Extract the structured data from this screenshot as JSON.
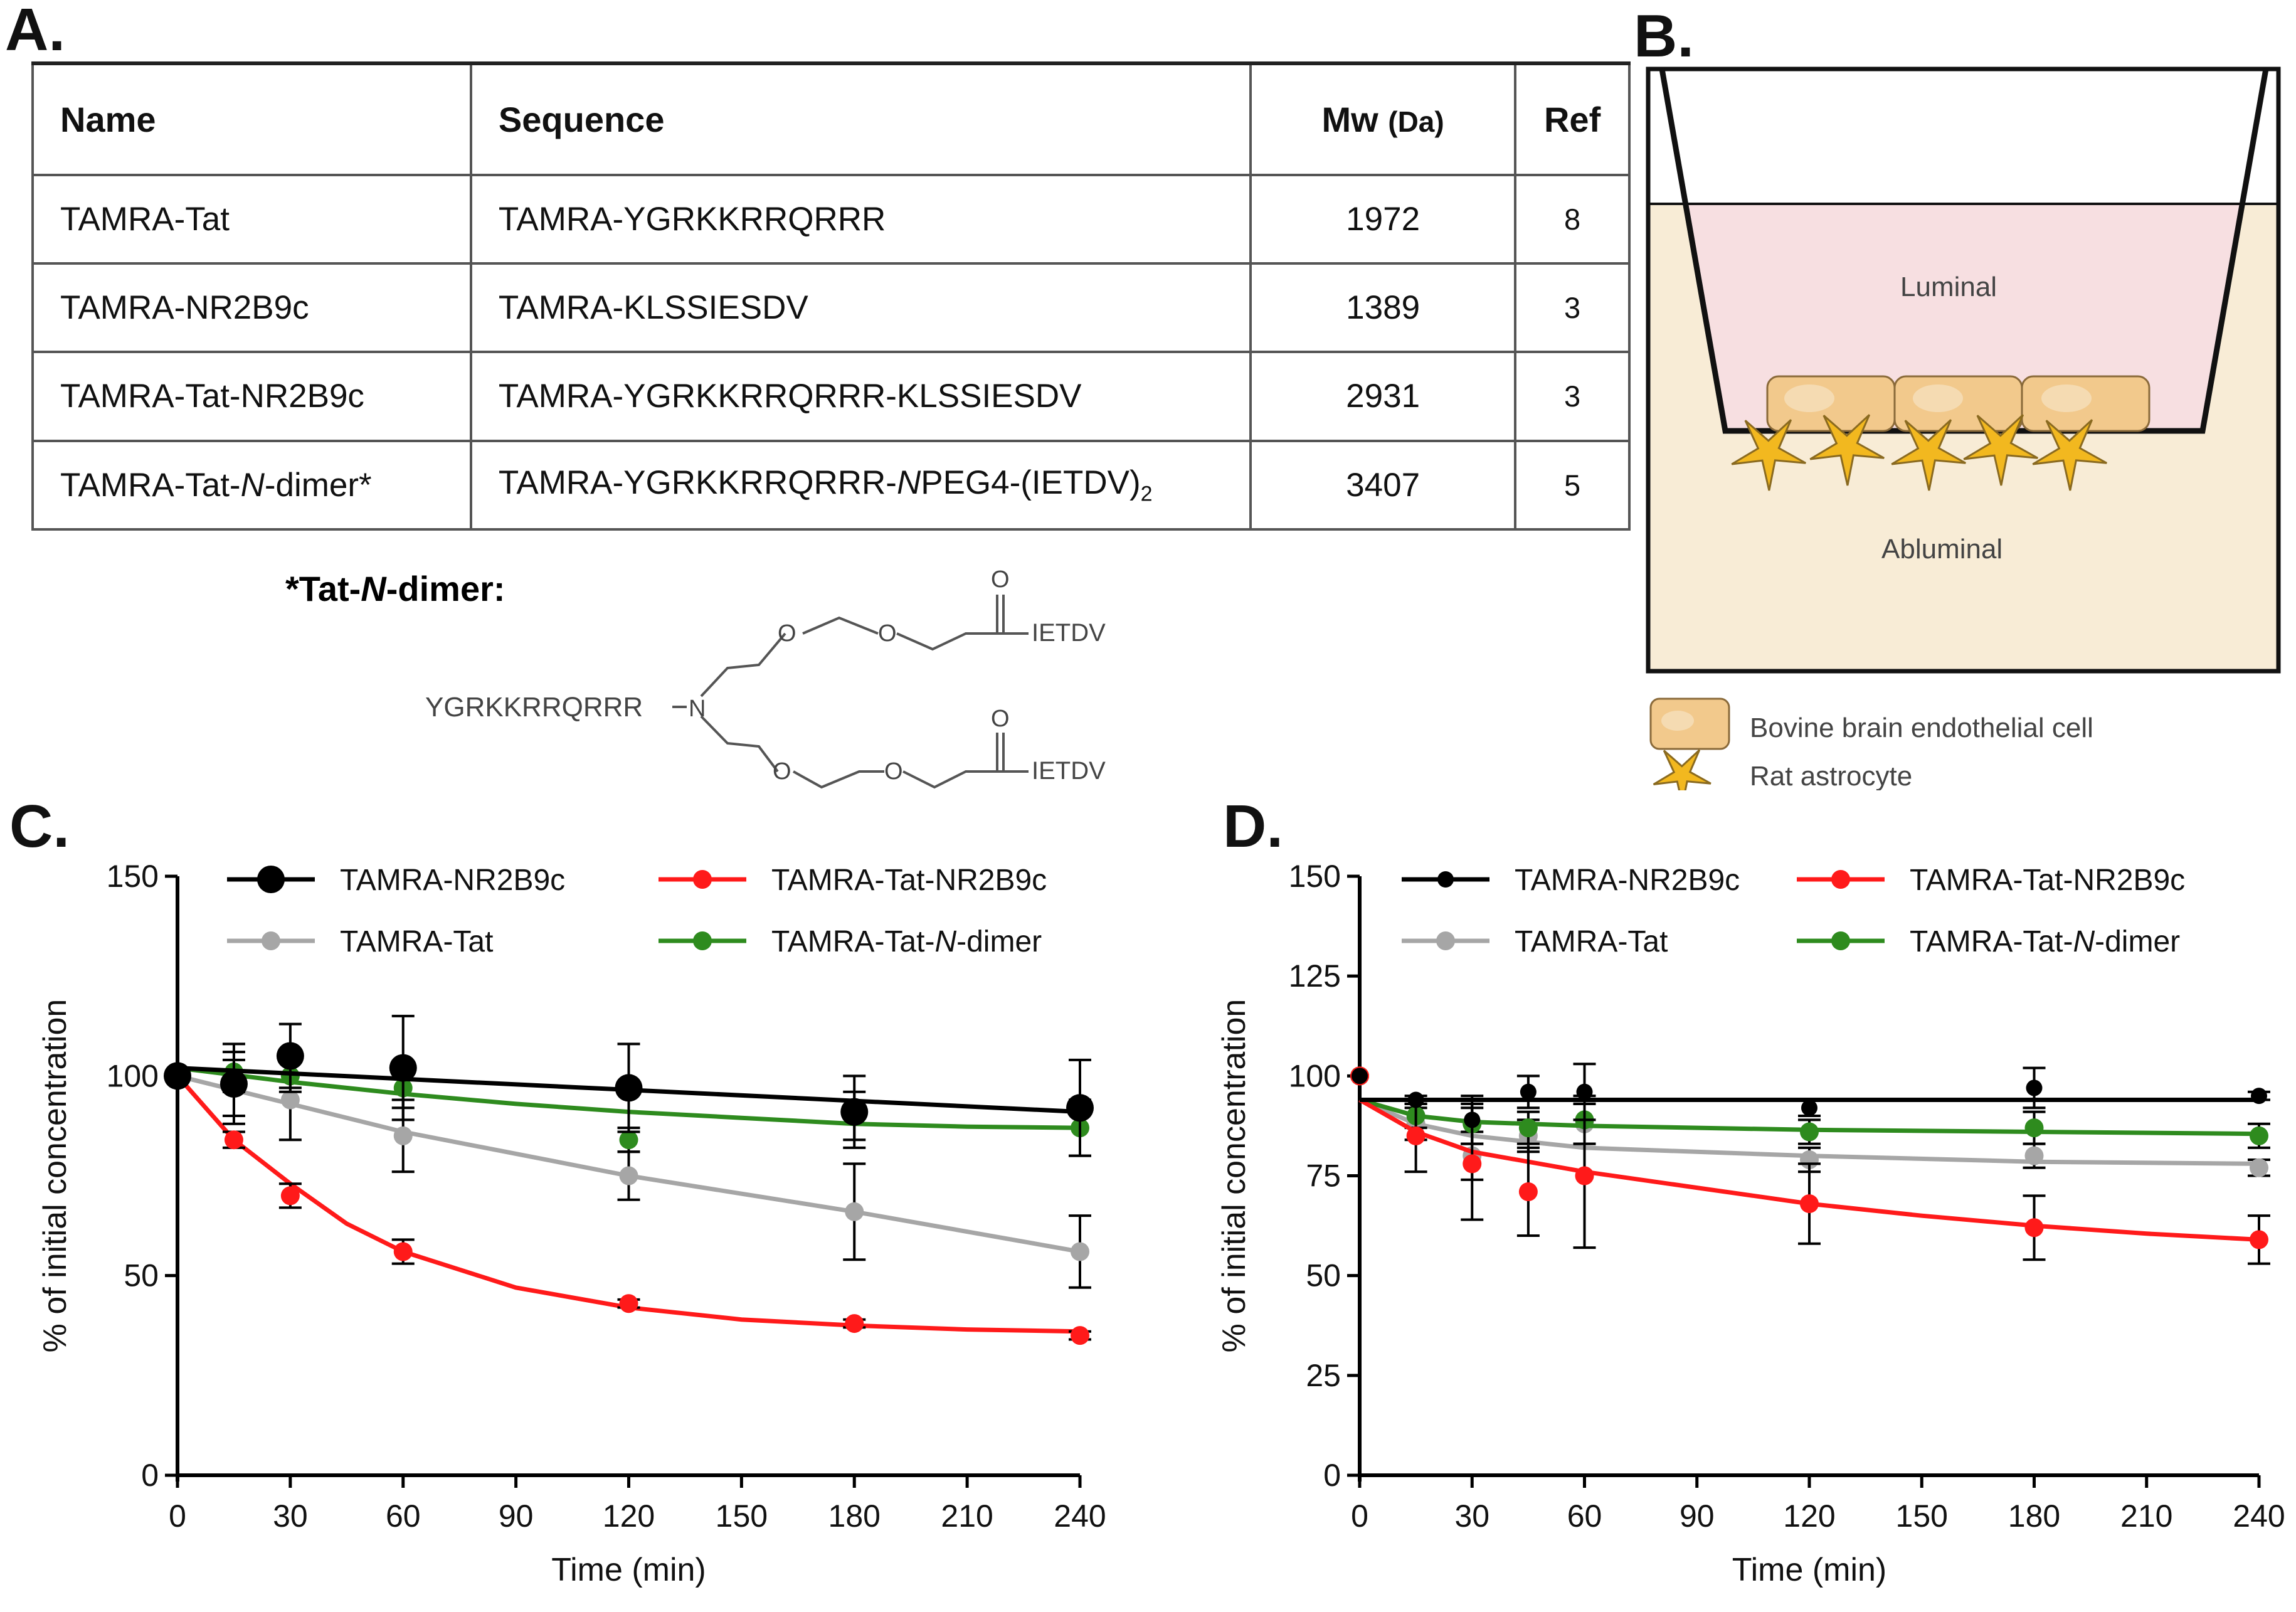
{
  "panel_labels": {
    "a": "A.",
    "b": "B.",
    "c": "C.",
    "d": "D."
  },
  "table": {
    "headers": {
      "name": "Name",
      "sequence": "Sequence",
      "mw": "Mw",
      "mw_unit": "(Da)",
      "ref": "Ref"
    },
    "rows": [
      {
        "name": "TAMRA-Tat",
        "sequence": "TAMRA-YGRKKRRQRRR",
        "mw": "1972",
        "ref": "8"
      },
      {
        "name": "TAMRA-NR2B9c",
        "sequence": "TAMRA-KLSSIESDV",
        "mw": "1389",
        "ref": "3"
      },
      {
        "name": "TAMRA-Tat-NR2B9c",
        "sequence": "TAMRA-YGRKKRRQRRR-KLSSIESDV",
        "mw": "2931",
        "ref": "3"
      },
      {
        "name_pre": "TAMRA-Tat-",
        "name_ital": "N",
        "name_post": "-dimer*",
        "seq_pre": "TAMRA-YGRKKRRQRRR-",
        "seq_ital": "N",
        "seq_post": "PEG4-(IETDV)",
        "seq_sub": "2",
        "mw": "3407",
        "ref": "5"
      }
    ]
  },
  "structure": {
    "title_pre": "*Tat-",
    "title_ital": "N",
    "title_post": "-dimer:",
    "peptide": "YGRKKRRQRRR",
    "n_atom": "N",
    "o_atom": "O",
    "terminal": "IETDV"
  },
  "diagram": {
    "luminal": "Luminal",
    "abluminal": "Abluminal",
    "legend_endothelial": "Bovine brain endothelial cell",
    "legend_astrocyte": "Rat astrocyte",
    "colors": {
      "luminal": "#f7dfe1",
      "abluminal": "#f8ecd6",
      "cell": "#f2c98c",
      "astrocyte": "#f2b81f"
    }
  },
  "chart_data": [
    {
      "panel": "C",
      "type": "line",
      "title": "",
      "xlabel": "Time (min)",
      "ylabel": "% of initial concentration",
      "xlim": [
        0,
        240
      ],
      "ylim": [
        0,
        150
      ],
      "xticks": [
        0,
        30,
        60,
        90,
        120,
        150,
        180,
        210,
        240
      ],
      "yticks": [
        0,
        50,
        100,
        150
      ],
      "legend": "top",
      "series": [
        {
          "name": "TAMRA-NR2B9c",
          "color": "#000000",
          "x": [
            0,
            15,
            30,
            60,
            120,
            180,
            240
          ],
          "y": [
            100,
            98,
            105,
            102,
            97,
            91,
            92
          ],
          "err": [
            0,
            10,
            8,
            13,
            11,
            9,
            12
          ],
          "fit": [
            [
              0,
              102
            ],
            [
              240,
              91
            ]
          ]
        },
        {
          "name": "TAMRA-Tat-NR2B9c",
          "color": "#ff1a1a",
          "x": [
            0,
            15,
            30,
            60,
            120,
            180,
            240
          ],
          "y": [
            100,
            84,
            70,
            56,
            43,
            38,
            35
          ],
          "err": [
            0,
            2,
            3,
            3,
            1,
            1,
            1
          ],
          "fit": [
            [
              0,
              100
            ],
            [
              15,
              84
            ],
            [
              30,
              73
            ],
            [
              45,
              63
            ],
            [
              60,
              56
            ],
            [
              90,
              47
            ],
            [
              120,
              42
            ],
            [
              150,
              39
            ],
            [
              180,
              37.5
            ],
            [
              210,
              36.5
            ],
            [
              240,
              36
            ]
          ]
        },
        {
          "name": "TAMRA-Tat",
          "color": "#a6a6a6",
          "x": [
            0,
            15,
            30,
            60,
            120,
            180,
            240
          ],
          "y": [
            100,
            97,
            94,
            85,
            75,
            66,
            56
          ],
          "err": [
            0,
            7,
            10,
            9,
            6,
            12,
            9
          ],
          "fit": [
            [
              0,
              100
            ],
            [
              30,
              93
            ],
            [
              60,
              86
            ],
            [
              120,
              75
            ],
            [
              180,
              66
            ],
            [
              240,
              56
            ]
          ]
        },
        {
          "name": "TAMRA-Tat-N-dimer",
          "color": "#2e8b1e",
          "x": [
            0,
            15,
            30,
            60,
            120,
            180,
            240
          ],
          "y": [
            100,
            101,
            100,
            97,
            84,
            90,
            87
          ],
          "err": [
            0,
            5,
            4,
            5,
            3,
            6,
            7
          ],
          "fit": [
            [
              0,
              102
            ],
            [
              30,
              98.5
            ],
            [
              60,
              95.5
            ],
            [
              90,
              93
            ],
            [
              120,
              91
            ],
            [
              150,
              89.5
            ],
            [
              180,
              88
            ],
            [
              210,
              87.3
            ],
            [
              240,
              87
            ]
          ]
        }
      ]
    },
    {
      "panel": "D",
      "type": "line",
      "title": "",
      "xlabel": "Time (min)",
      "ylabel": "% of initial concentration",
      "xlim": [
        0,
        240
      ],
      "ylim": [
        0,
        150
      ],
      "xticks": [
        0,
        30,
        60,
        90,
        120,
        150,
        180,
        210,
        240
      ],
      "yticks": [
        0,
        25,
        50,
        75,
        100,
        125,
        150
      ],
      "legend": "top",
      "series": [
        {
          "name": "TAMRA-NR2B9c",
          "color": "#000000",
          "x": [
            0,
            15,
            30,
            45,
            60,
            120,
            180,
            240
          ],
          "y": [
            100,
            94,
            89,
            96,
            96,
            92,
            97,
            95
          ],
          "err": [
            0,
            1,
            6,
            4,
            7,
            2,
            5,
            1
          ],
          "fit": [
            [
              0,
              94
            ],
            [
              240,
              94
            ]
          ]
        },
        {
          "name": "TAMRA-Tat-NR2B9c",
          "color": "#ff1a1a",
          "x": [
            0,
            15,
            30,
            45,
            60,
            120,
            180,
            240
          ],
          "y": [
            100,
            85,
            78,
            71,
            75,
            68,
            62,
            59
          ],
          "err": [
            0,
            9,
            14,
            11,
            18,
            10,
            8,
            6
          ],
          "fit": [
            [
              0,
              94
            ],
            [
              15,
              86
            ],
            [
              30,
              81
            ],
            [
              60,
              76
            ],
            [
              90,
              72
            ],
            [
              120,
              68
            ],
            [
              150,
              65
            ],
            [
              180,
              62.5
            ],
            [
              210,
              60.5
            ],
            [
              240,
              59
            ]
          ]
        },
        {
          "name": "TAMRA-Tat",
          "color": "#a6a6a6",
          "x": [
            0,
            15,
            30,
            45,
            60,
            120,
            180,
            240
          ],
          "y": [
            100,
            88,
            80,
            85,
            88,
            79,
            80,
            77
          ],
          "err": [
            0,
            4,
            6,
            4,
            5,
            3,
            3,
            2
          ],
          "fit": [
            [
              0,
              94
            ],
            [
              15,
              88
            ],
            [
              30,
              85
            ],
            [
              60,
              82
            ],
            [
              120,
              80
            ],
            [
              180,
              78.5
            ],
            [
              240,
              78
            ]
          ]
        },
        {
          "name": "TAMRA-Tat-N-dimer",
          "color": "#2e8b1e",
          "x": [
            0,
            15,
            30,
            45,
            60,
            120,
            180,
            240
          ],
          "y": [
            100,
            90,
            88,
            87,
            89,
            86,
            87,
            85
          ],
          "err": [
            0,
            3,
            5,
            4,
            6,
            3,
            4,
            3
          ],
          "fit": [
            [
              0,
              94
            ],
            [
              15,
              90
            ],
            [
              30,
              88.5
            ],
            [
              60,
              87.5
            ],
            [
              120,
              86.5
            ],
            [
              180,
              86
            ],
            [
              240,
              85.5
            ]
          ]
        }
      ]
    }
  ]
}
